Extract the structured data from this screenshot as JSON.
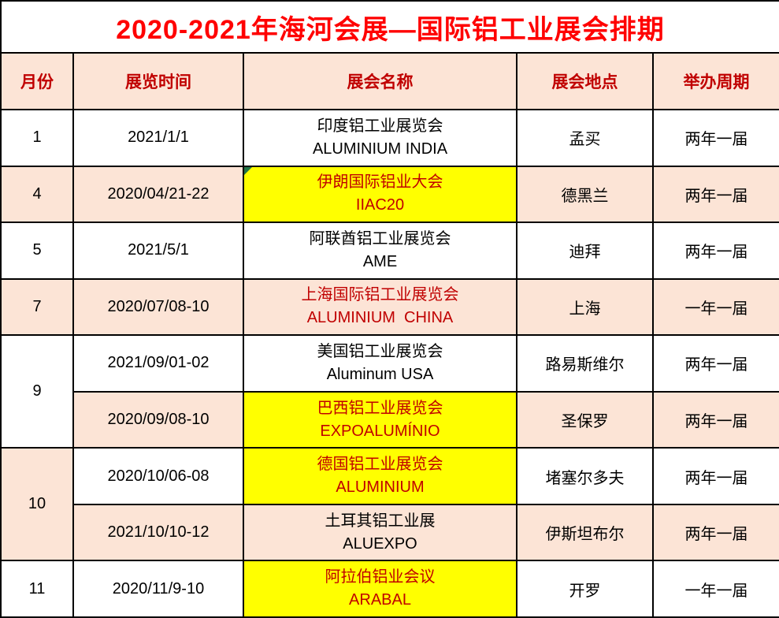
{
  "title": "2020-2021年海河会展—国际铝工业展会排期",
  "header": {
    "columns": [
      "月份",
      "展览时间",
      "展会名称",
      "展会地点",
      "举办周期"
    ]
  },
  "colors": {
    "title_text": "#FF0000",
    "header_text": "#C00000",
    "body_text": "#000000",
    "highlight_text": "#C00000",
    "peach_bg": "#FCE4D6",
    "yellow_bg": "#FFFF00",
    "white_bg": "#FFFFFF",
    "border": "#000000",
    "indicator_green": "#217346"
  },
  "rows": [
    {
      "month": "1",
      "rowspan": 1,
      "month_bg": "white",
      "bg": "white",
      "date": "2021/1/1",
      "name_cn": "印度铝工业展览会",
      "name_en": "ALUMINIUM INDIA",
      "name_bg": "white",
      "name_highlight": false,
      "indicator": false,
      "location": "孟买",
      "cycle": "两年一届"
    },
    {
      "month": "4",
      "rowspan": 1,
      "month_bg": "peach",
      "bg": "peach",
      "date": "2020/04/21-22",
      "name_cn": "伊朗国际铝业大会",
      "name_en": "IIAC20",
      "name_bg": "yellow",
      "name_highlight": true,
      "indicator": true,
      "location": "德黑兰",
      "cycle": "两年一届"
    },
    {
      "month": "5",
      "rowspan": 1,
      "month_bg": "white",
      "bg": "white",
      "date": "2021/5/1",
      "name_cn": "阿联酋铝工业展览会",
      "name_en": "AME",
      "name_bg": "white",
      "name_highlight": false,
      "indicator": false,
      "location": "迪拜",
      "cycle": "两年一届"
    },
    {
      "month": "7",
      "rowspan": 1,
      "month_bg": "peach",
      "bg": "peach",
      "date": "2020/07/08-10",
      "name_cn": "上海国际铝工业展览会",
      "name_en": "ALUMINIUM  CHINA",
      "name_bg": "peach",
      "name_highlight": true,
      "indicator": false,
      "location": "上海",
      "cycle": "一年一届"
    },
    {
      "month": "9",
      "rowspan": 2,
      "month_bg": "white",
      "bg": "white",
      "date": "2021/09/01-02",
      "name_cn": "美国铝工业展览会",
      "name_en": "Aluminum USA",
      "name_bg": "white",
      "name_highlight": false,
      "indicator": false,
      "location": "路易斯维尔",
      "cycle": "两年一届"
    },
    {
      "month": null,
      "rowspan": 1,
      "month_bg": "peach",
      "bg": "peach",
      "date": "2020/09/08-10",
      "name_cn": "巴西铝工业展览会",
      "name_en": "EXPOALUMÍNIO",
      "name_bg": "yellow",
      "name_highlight": true,
      "indicator": false,
      "location": "圣保罗",
      "cycle": "两年一届"
    },
    {
      "month": "10",
      "rowspan": 2,
      "month_bg": "peach",
      "bg": "white",
      "date": "2020/10/06-08",
      "name_cn": "德国铝工业展览会",
      "name_en": "ALUMINIUM",
      "name_bg": "yellow",
      "name_highlight": true,
      "indicator": false,
      "location": "堵塞尔多夫",
      "cycle": "两年一届"
    },
    {
      "month": null,
      "rowspan": 1,
      "month_bg": "peach",
      "bg": "peach",
      "date": "2021/10/10-12",
      "name_cn": "土耳其铝工业展",
      "name_en": "ALUEXPO",
      "name_bg": "peach",
      "name_highlight": false,
      "indicator": false,
      "location": "伊斯坦布尔",
      "cycle": "两年一届"
    },
    {
      "month": "11",
      "rowspan": 1,
      "month_bg": "white",
      "bg": "white",
      "date": "2020/11/9-10",
      "name_cn": "阿拉伯铝业会议",
      "name_en": "ARABAL",
      "name_bg": "yellow",
      "name_highlight": true,
      "indicator": false,
      "location": "开罗",
      "cycle": "一年一届"
    }
  ]
}
